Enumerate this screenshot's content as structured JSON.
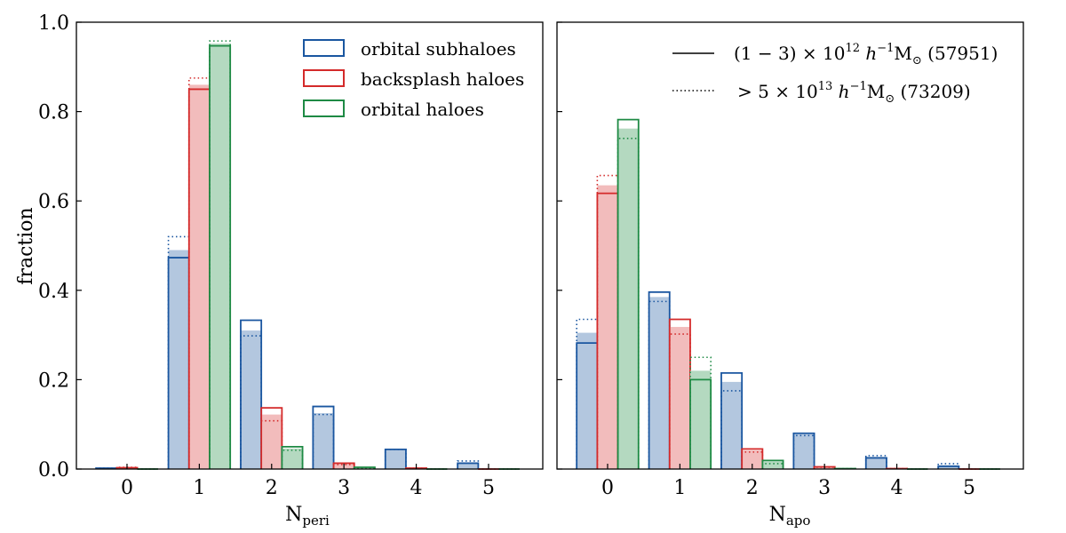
{
  "colors": {
    "orbital_subhaloes": "#1a56a0",
    "backsplash_haloes": "#d42a2a",
    "orbital_haloes": "#1e8a44"
  },
  "legend": {
    "categories": [
      "orbital subhaloes",
      "backsplash haloes",
      "orbital haloes"
    ],
    "samples": {
      "solid": {
        "prefix": "(1 − 3) × 10",
        "exp": "12",
        "unit": " h",
        "unit_exp": "−1",
        "mass": "M",
        "sun": "⊙",
        "count": " (57951)"
      },
      "dotted": {
        "prefix": "> 5 × 10",
        "exp": "13",
        "unit": " h",
        "unit_exp": "−1",
        "mass": "M",
        "sun": "⊙",
        "count": " (73209)"
      }
    }
  },
  "chart_data": [
    {
      "type": "bar",
      "panel": "left",
      "xlabel": "N",
      "xlabel_sub": "peri",
      "ylabel": "fraction",
      "ylim": [
        0,
        1.0
      ],
      "yticks": [
        0.0,
        0.2,
        0.4,
        0.6,
        0.8,
        1.0
      ],
      "ytick_labels": [
        "0.0",
        "0.2",
        "0.4",
        "0.6",
        "0.8",
        "1.0"
      ],
      "categories": [
        "0",
        "1",
        "2",
        "3",
        "4",
        "5"
      ],
      "series": [
        {
          "name": "orbital subhaloes",
          "key": "orbital_subhaloes",
          "solid": [
            0.002,
            0.473,
            0.333,
            0.14,
            0.044,
            0.013
          ],
          "dotted": [
            0.002,
            0.52,
            0.298,
            0.122,
            0.044,
            0.018
          ],
          "filled": [
            0.002,
            0.49,
            0.31,
            0.125,
            0.044,
            0.014
          ]
        },
        {
          "name": "backsplash haloes",
          "key": "backsplash_haloes",
          "solid": [
            0.003,
            0.85,
            0.137,
            0.013,
            0.002,
            0.0
          ],
          "dotted": [
            0.004,
            0.875,
            0.108,
            0.01,
            0.002,
            0.0
          ],
          "filled": [
            0.003,
            0.86,
            0.122,
            0.011,
            0.002,
            0.0
          ]
        },
        {
          "name": "orbital haloes",
          "key": "orbital_haloes",
          "solid": [
            0.0,
            0.947,
            0.05,
            0.004,
            0.0,
            0.0
          ],
          "dotted": [
            0.0,
            0.958,
            0.042,
            0.002,
            0.0,
            0.0
          ],
          "filled": [
            0.0,
            0.952,
            0.046,
            0.003,
            0.0,
            0.0
          ]
        }
      ]
    },
    {
      "type": "bar",
      "panel": "right",
      "xlabel": "N",
      "xlabel_sub": "apo",
      "ylabel": "",
      "ylim": [
        0,
        1.0
      ],
      "yticks": [
        0.0,
        0.2,
        0.4,
        0.6,
        0.8,
        1.0
      ],
      "categories": [
        "0",
        "1",
        "2",
        "3",
        "4",
        "5"
      ],
      "series": [
        {
          "name": "orbital subhaloes",
          "key": "orbital_subhaloes",
          "solid": [
            0.282,
            0.396,
            0.215,
            0.08,
            0.025,
            0.006
          ],
          "dotted": [
            0.335,
            0.375,
            0.175,
            0.075,
            0.03,
            0.012
          ],
          "filled": [
            0.305,
            0.385,
            0.195,
            0.078,
            0.027,
            0.009
          ]
        },
        {
          "name": "backsplash haloes",
          "key": "backsplash_haloes",
          "solid": [
            0.617,
            0.335,
            0.045,
            0.005,
            0.001,
            0.0
          ],
          "dotted": [
            0.657,
            0.302,
            0.038,
            0.004,
            0.001,
            0.0
          ],
          "filled": [
            0.635,
            0.318,
            0.042,
            0.005,
            0.001,
            0.0
          ]
        },
        {
          "name": "orbital haloes",
          "key": "orbital_haloes",
          "solid": [
            0.782,
            0.2,
            0.019,
            0.001,
            0.0,
            0.0
          ],
          "dotted": [
            0.74,
            0.25,
            0.012,
            0.001,
            0.0,
            0.0
          ],
          "filled": [
            0.762,
            0.22,
            0.016,
            0.001,
            0.0,
            0.0
          ]
        }
      ]
    }
  ]
}
